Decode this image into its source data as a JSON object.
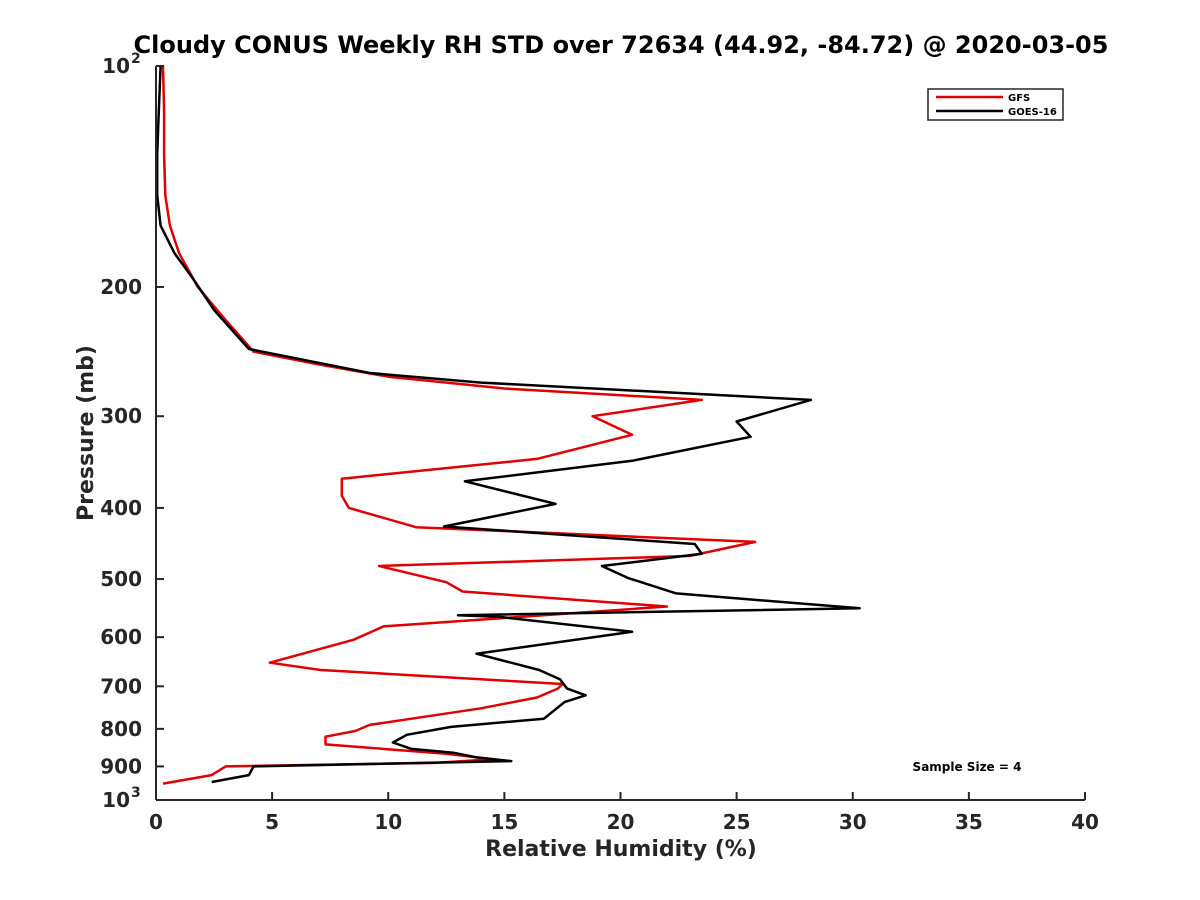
{
  "chart_data": {
    "type": "line",
    "title": "Cloudy CONUS Weekly RH STD over 72634 (44.92, -84.72) @ 2020-03-05",
    "xlabel": "Relative Humidity (%)",
    "ylabel": "Pressure (mb)",
    "xlim": [
      0,
      40
    ],
    "ylim": [
      100,
      1000
    ],
    "y_scale": "log",
    "y_reversed": true,
    "grid": false,
    "legend_position": "top-right",
    "x_ticks": [
      "0",
      "5",
      "10",
      "15",
      "20",
      "25",
      "30",
      "35",
      "40"
    ],
    "x_tick_values": [
      0,
      5,
      10,
      15,
      20,
      25,
      30,
      35,
      40
    ],
    "y_ticks": [
      {
        "value": 100,
        "base": "10",
        "exp": "2"
      },
      {
        "value": 200,
        "label": "200"
      },
      {
        "value": 300,
        "label": "300"
      },
      {
        "value": 400,
        "label": "400"
      },
      {
        "value": 500,
        "label": "500"
      },
      {
        "value": 600,
        "label": "600"
      },
      {
        "value": 700,
        "label": "700"
      },
      {
        "value": 800,
        "label": "800"
      },
      {
        "value": 900,
        "label": "900"
      },
      {
        "value": 1000,
        "base": "10",
        "exp": "3"
      }
    ],
    "annotation": "Sample Size = 4",
    "series": [
      {
        "name": "GFS",
        "color": "#e00000",
        "points": [
          [
            0.3,
            100
          ],
          [
            0.35,
            115
          ],
          [
            0.35,
            132
          ],
          [
            0.4,
            150
          ],
          [
            0.6,
            165
          ],
          [
            1.0,
            180
          ],
          [
            1.8,
            200
          ],
          [
            3.0,
            222
          ],
          [
            4.2,
            245
          ],
          [
            7.0,
            255
          ],
          [
            10.0,
            265
          ],
          [
            15.0,
            275
          ],
          [
            23.5,
            285
          ],
          [
            18.8,
            300
          ],
          [
            20.5,
            318
          ],
          [
            16.4,
            343
          ],
          [
            8.0,
            365
          ],
          [
            8.0,
            385
          ],
          [
            8.3,
            400
          ],
          [
            11.2,
            425
          ],
          [
            25.8,
            445
          ],
          [
            23.0,
            465
          ],
          [
            9.6,
            480
          ],
          [
            12.5,
            505
          ],
          [
            13.2,
            520
          ],
          [
            22.0,
            545
          ],
          [
            15.0,
            565
          ],
          [
            9.8,
            580
          ],
          [
            8.5,
            605
          ],
          [
            4.9,
            650
          ],
          [
            7.1,
            665
          ],
          [
            17.5,
            695
          ],
          [
            17.3,
            705
          ],
          [
            16.4,
            725
          ],
          [
            14.0,
            750
          ],
          [
            11.0,
            775
          ],
          [
            9.2,
            790
          ],
          [
            8.6,
            805
          ],
          [
            7.3,
            820
          ],
          [
            7.3,
            840
          ],
          [
            12.5,
            865
          ],
          [
            14.5,
            880
          ],
          [
            12.0,
            890
          ],
          [
            3.0,
            900
          ],
          [
            2.4,
            925
          ],
          [
            0.3,
            950
          ]
        ]
      },
      {
        "name": "GOES-16",
        "color": "#000000",
        "points": [
          [
            0.2,
            100
          ],
          [
            0.1,
            120
          ],
          [
            0.05,
            132
          ],
          [
            0.05,
            150
          ],
          [
            0.2,
            165
          ],
          [
            0.8,
            180
          ],
          [
            1.6,
            195
          ],
          [
            2.5,
            215
          ],
          [
            4.0,
            243
          ],
          [
            9.2,
            262
          ],
          [
            14.0,
            270
          ],
          [
            28.2,
            285
          ],
          [
            25.0,
            305
          ],
          [
            25.6,
            320
          ],
          [
            20.5,
            345
          ],
          [
            13.3,
            368
          ],
          [
            17.2,
            395
          ],
          [
            12.4,
            424
          ],
          [
            23.2,
            448
          ],
          [
            23.5,
            462
          ],
          [
            19.2,
            480
          ],
          [
            20.3,
            498
          ],
          [
            22.4,
            523
          ],
          [
            30.3,
            548
          ],
          [
            13.0,
            560
          ],
          [
            14.8,
            563
          ],
          [
            20.5,
            590
          ],
          [
            13.8,
            632
          ],
          [
            16.5,
            665
          ],
          [
            17.4,
            685
          ],
          [
            17.7,
            705
          ],
          [
            18.5,
            720
          ],
          [
            17.6,
            735
          ],
          [
            16.7,
            775
          ],
          [
            12.7,
            795
          ],
          [
            10.8,
            815
          ],
          [
            10.2,
            835
          ],
          [
            11.0,
            852
          ],
          [
            12.8,
            862
          ],
          [
            13.8,
            875
          ],
          [
            15.3,
            885
          ],
          [
            4.2,
            900
          ],
          [
            4.0,
            925
          ],
          [
            2.4,
            945
          ]
        ]
      }
    ]
  }
}
